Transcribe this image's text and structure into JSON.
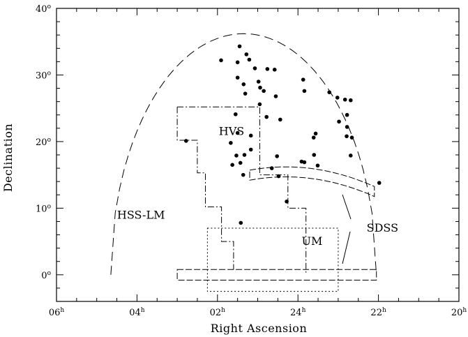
{
  "chart_data": {
    "type": "scatter",
    "xlabel": "Right Ascension",
    "ylabel": "Declination",
    "xlim": [
      6,
      -4
    ],
    "ylim": [
      -4,
      40
    ],
    "x_ticks": [
      {
        "value": 6,
        "base": "06",
        "sup": "h"
      },
      {
        "value": 4,
        "base": "04",
        "sup": "h"
      },
      {
        "value": 2,
        "base": "02",
        "sup": "h"
      },
      {
        "value": 0,
        "base": "24",
        "sup": "h"
      },
      {
        "value": -2,
        "base": "22",
        "sup": "h"
      },
      {
        "value": -4,
        "base": "20",
        "sup": "h"
      }
    ],
    "y_ticks": [
      {
        "value": 0,
        "base": "0",
        "sup": "o"
      },
      {
        "value": 10,
        "base": "10",
        "sup": "o"
      },
      {
        "value": 20,
        "base": "20",
        "sup": "o"
      },
      {
        "value": 30,
        "base": "30",
        "sup": "o"
      },
      {
        "value": 40,
        "base": "40",
        "sup": "o"
      }
    ],
    "annotations": [
      {
        "text": "HVS",
        "x": 1.65,
        "y": 21.0
      },
      {
        "text": "HSS-LM",
        "x": 3.9,
        "y": 8.4
      },
      {
        "text": "UM",
        "x": -0.35,
        "y": 4.5
      },
      {
        "text": "SDSS",
        "x": -2.1,
        "y": 6.5
      }
    ],
    "series": [
      {
        "style": "points",
        "points": [
          [
            1.91,
            32.2
          ],
          [
            1.45,
            34.3
          ],
          [
            1.5,
            31.9
          ],
          [
            1.5,
            29.6
          ],
          [
            1.35,
            28.6
          ],
          [
            1.31,
            27.2
          ],
          [
            1.28,
            33.1
          ],
          [
            1.21,
            32.3
          ],
          [
            1.07,
            31.0
          ],
          [
            0.76,
            30.9
          ],
          [
            0.58,
            30.8
          ],
          [
            0.98,
            29.0
          ],
          [
            0.94,
            28.1
          ],
          [
            0.85,
            27.6
          ],
          [
            0.55,
            26.8
          ],
          [
            0.95,
            25.6
          ],
          [
            1.55,
            24.1
          ],
          [
            0.78,
            23.7
          ],
          [
            0.44,
            23.3
          ],
          [
            -0.13,
            29.3
          ],
          [
            -0.16,
            27.6
          ],
          [
            -0.78,
            27.4
          ],
          [
            -0.98,
            26.6
          ],
          [
            -1.17,
            26.3
          ],
          [
            -1.31,
            26.2
          ],
          [
            -1.22,
            24.0
          ],
          [
            -1.02,
            23.0
          ],
          [
            -1.22,
            22.2
          ],
          [
            -0.44,
            21.2
          ],
          [
            -0.39,
            20.6
          ],
          [
            -1.21,
            20.8
          ],
          [
            -1.34,
            20.6
          ],
          [
            -1.31,
            17.9
          ],
          [
            -0.4,
            18.0
          ],
          [
            1.5,
            21.3
          ],
          [
            1.17,
            20.9
          ],
          [
            1.67,
            19.8
          ],
          [
            1.17,
            18.8
          ],
          [
            1.33,
            18.0
          ],
          [
            1.53,
            17.9
          ],
          [
            1.43,
            16.8
          ],
          [
            1.63,
            16.5
          ],
          [
            0.52,
            17.8
          ],
          [
            -0.09,
            17.0
          ],
          [
            -0.16,
            16.9
          ],
          [
            0.48,
            14.8
          ],
          [
            -0.49,
            16.4
          ],
          [
            2.78,
            20.1
          ],
          [
            1.36,
            15.0
          ],
          [
            0.65,
            16.0
          ],
          [
            -2.02,
            13.8
          ],
          [
            0.28,
            11.0
          ],
          [
            1.42,
            7.8
          ]
        ]
      }
    ]
  }
}
